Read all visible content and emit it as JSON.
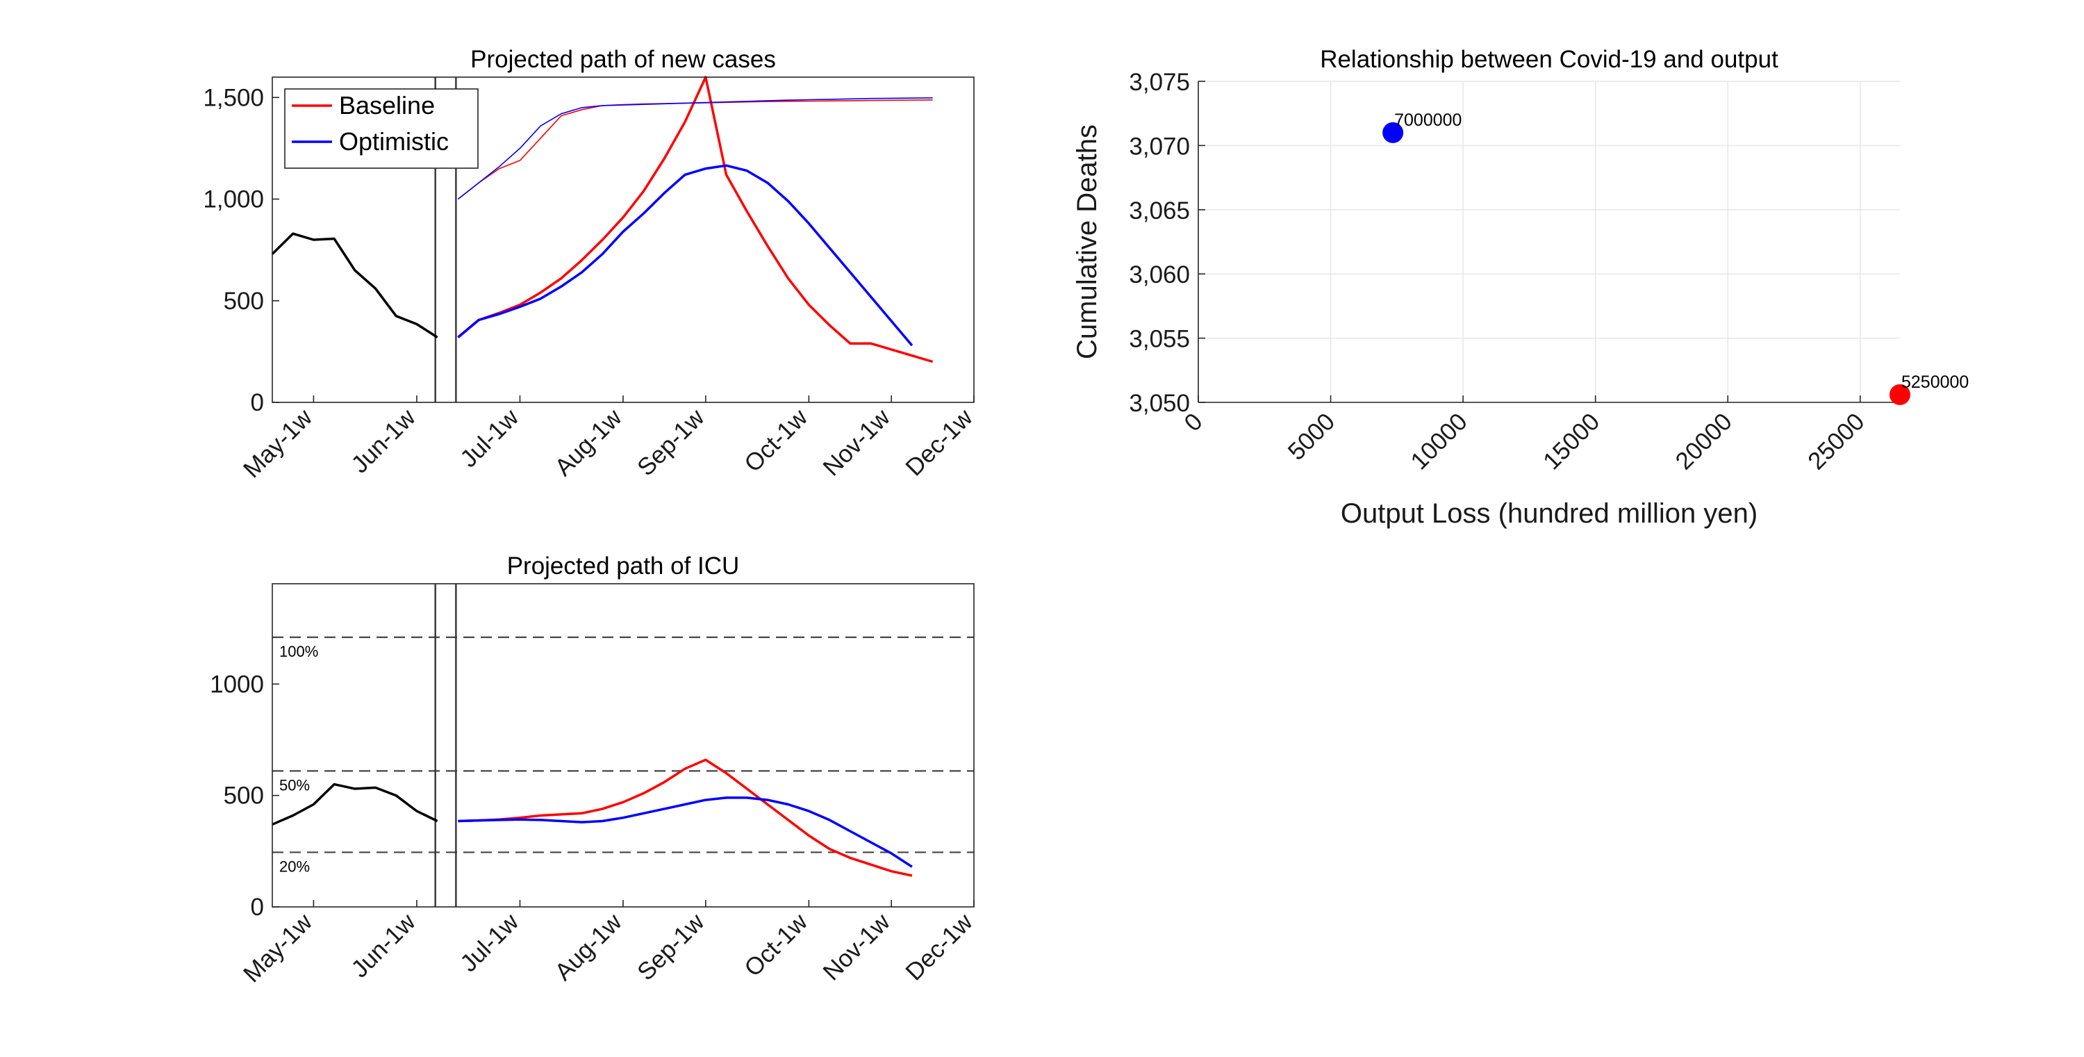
{
  "chart_data": [
    {
      "type": "line",
      "title": "Projected path of new cases",
      "x_tick_labels": [
        "May-1w",
        "Jun-1w",
        "Jul-1w",
        "Aug-1w",
        "Sep-1w",
        "Oct-1w",
        "Nov-1w",
        "Dec-1w"
      ],
      "x_tick_weeks": [
        2,
        7,
        12,
        17,
        21,
        26,
        30,
        34
      ],
      "ylim": [
        0,
        1600
      ],
      "y_ticks": [
        0,
        500,
        1000,
        1500
      ],
      "y_tick_labels": [
        "0",
        "500",
        "1,000",
        "1,500"
      ],
      "vlines": [
        7.9,
        8.9
      ],
      "legend": [
        "Baseline",
        "Optimistic"
      ],
      "colors": {
        "observed": "#000000",
        "baseline": "#ff0000",
        "optimistic": "#0000ff"
      },
      "series": [
        {
          "weeks": [
            0,
            1,
            2,
            3,
            4,
            5,
            6,
            7,
            8,
            9
          ],
          "values": [
            730,
            830,
            800,
            805,
            650,
            560,
            425,
            385,
            320,
            null
          ]
        },
        {
          "name": "Baseline",
          "weeks": [
            9,
            10,
            11,
            12,
            13,
            14,
            15,
            16,
            17,
            18,
            19,
            20,
            21,
            22,
            23,
            24,
            25,
            26,
            27,
            28,
            29,
            30,
            31,
            32,
            33,
            34
          ],
          "values": [
            320,
            405,
            440,
            480,
            540,
            610,
            700,
            800,
            910,
            1040,
            1200,
            1380,
            1600,
            1120,
            940,
            770,
            610,
            480,
            380,
            290,
            290,
            260,
            230,
            200,
            null,
            null
          ]
        },
        {
          "name": "Optimistic",
          "weeks": [
            9,
            10,
            11,
            12,
            13,
            14,
            15,
            16,
            17,
            18,
            19,
            20,
            21,
            22,
            23,
            24,
            25,
            26,
            27,
            28,
            29,
            30,
            31,
            32,
            33,
            34
          ],
          "values": [
            320,
            405,
            435,
            470,
            510,
            570,
            640,
            730,
            840,
            930,
            1030,
            1120,
            1150,
            1165,
            1140,
            1080,
            990,
            880,
            760,
            640,
            520,
            400,
            280,
            null,
            null,
            null
          ]
        },
        {
          "name": "Baseline (cumulative)",
          "weeks": [
            9,
            10,
            11,
            12,
            13,
            14,
            15,
            16,
            17,
            18,
            19,
            20,
            21,
            22,
            23,
            24,
            25,
            26,
            27,
            28,
            29,
            30,
            31,
            32
          ],
          "values": [
            1000,
            1080,
            1150,
            1190,
            1300,
            1410,
            1440,
            1460,
            1465,
            1468,
            1470,
            1472,
            1474,
            1476,
            1478,
            1480,
            1481,
            1482,
            1483,
            1484,
            1485,
            1486,
            1487,
            1488
          ]
        },
        {
          "name": "Optimistic (cumulative)",
          "weeks": [
            9,
            10,
            11,
            12,
            13,
            14,
            15,
            16,
            17,
            18,
            19,
            20,
            21,
            22,
            23,
            24,
            25,
            26,
            27,
            28,
            29,
            30,
            31,
            32
          ],
          "values": [
            1000,
            1080,
            1160,
            1250,
            1360,
            1420,
            1450,
            1460,
            1463,
            1466,
            1469,
            1472,
            1475,
            1478,
            1481,
            1484,
            1487,
            1489,
            1491,
            1493,
            1495,
            1496,
            1497,
            1498
          ]
        }
      ]
    },
    {
      "type": "line",
      "title": "Projected path of ICU",
      "x_tick_labels": [
        "May-1w",
        "Jun-1w",
        "Jul-1w",
        "Aug-1w",
        "Sep-1w",
        "Oct-1w",
        "Nov-1w",
        "Dec-1w"
      ],
      "x_tick_weeks": [
        2,
        7,
        12,
        17,
        21,
        26,
        30,
        34
      ],
      "ylim": [
        0,
        1450
      ],
      "y_ticks": [
        0,
        500,
        1000
      ],
      "y_tick_labels": [
        "0",
        "500",
        "1000"
      ],
      "vlines": [
        7.9,
        8.9
      ],
      "hlines": [
        {
          "value": 1210,
          "label": "100%"
        },
        {
          "value": 610,
          "label": "50%"
        },
        {
          "value": 245,
          "label": "20%"
        }
      ],
      "series": [
        {
          "weeks": [
            0,
            1,
            2,
            3,
            4,
            5,
            6,
            7,
            8,
            9
          ],
          "values": [
            370,
            410,
            460,
            550,
            530,
            535,
            500,
            430,
            385,
            null
          ]
        },
        {
          "name": "Baseline",
          "weeks": [
            9,
            10,
            11,
            12,
            13,
            14,
            15,
            16,
            17,
            18,
            19,
            20,
            21,
            22,
            23,
            24,
            25,
            26,
            27,
            28,
            29,
            30,
            31,
            32
          ],
          "values": [
            385,
            388,
            392,
            400,
            410,
            415,
            420,
            440,
            470,
            510,
            560,
            620,
            660,
            600,
            530,
            460,
            390,
            320,
            260,
            220,
            190,
            160,
            140,
            null
          ]
        },
        {
          "name": "Optimistic",
          "weeks": [
            9,
            10,
            11,
            12,
            13,
            14,
            15,
            16,
            17,
            18,
            19,
            20,
            21,
            22,
            23,
            24,
            25,
            26,
            27,
            28,
            29,
            30,
            31,
            32
          ],
          "values": [
            385,
            388,
            390,
            392,
            390,
            385,
            380,
            385,
            400,
            420,
            440,
            460,
            480,
            490,
            490,
            480,
            460,
            430,
            390,
            340,
            290,
            240,
            180,
            null
          ]
        }
      ]
    },
    {
      "type": "scatter",
      "title": "Relationship between Covid-19 and output",
      "xlabel": "Output Loss (hundred million yen)",
      "ylabel": "Cumulative Deaths",
      "xlim": [
        0,
        26500
      ],
      "ylim": [
        3050,
        3075
      ],
      "x_ticks": [
        0,
        5000,
        10000,
        15000,
        20000,
        25000
      ],
      "y_ticks": [
        3050,
        3055,
        3060,
        3065,
        3070,
        3075
      ],
      "y_tick_labels": [
        "3,050",
        "3,055",
        "3,060",
        "3,065",
        "3,070",
        "3,075"
      ],
      "grid": true,
      "points": [
        {
          "x": 7350,
          "y": 3071,
          "label": "7000000",
          "color": "#0000ff"
        },
        {
          "x": 26500,
          "y": 3050.6,
          "label": "5250000",
          "color": "#ff0000"
        }
      ]
    }
  ]
}
